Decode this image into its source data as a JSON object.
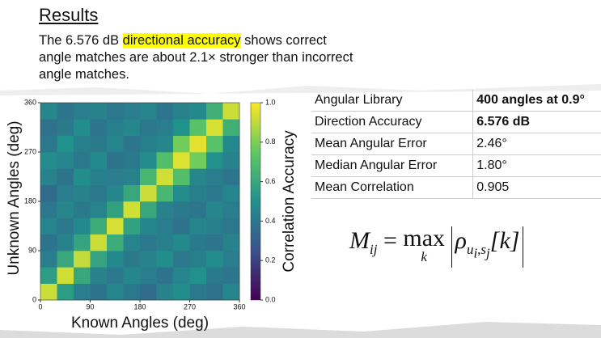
{
  "header": {
    "title": "Results"
  },
  "summary": {
    "before": "The 6.576 dB ",
    "highlight": "directional accuracy",
    "after": " shows correct angle matches are about 2.1× stronger than incorrect angle matches."
  },
  "chart_data": {
    "type": "heatmap",
    "x_label": "Known Angles (deg)",
    "y_label": "Unknown Angles (deg)",
    "colorbar_label": "Correlation Accuracy",
    "xlim": [
      0,
      360
    ],
    "ylim": [
      0,
      360
    ],
    "xticks": [
      0,
      90,
      180,
      270,
      360
    ],
    "yticks": [
      0,
      90,
      180,
      270,
      360
    ],
    "zlim": [
      0,
      1
    ],
    "zticks": [
      {
        "value": 0,
        "label": "0.0"
      },
      0.2,
      0.4,
      0.6,
      0.8,
      {
        "value": 1,
        "label": "1.0"
      }
    ],
    "values": [
      [
        0.92,
        0.55,
        0.42,
        0.38,
        0.45,
        0.4,
        0.35,
        0.44,
        0.48,
        0.4,
        0.37,
        0.46
      ],
      [
        0.55,
        0.93,
        0.6,
        0.44,
        0.4,
        0.46,
        0.42,
        0.38,
        0.45,
        0.5,
        0.41,
        0.39
      ],
      [
        0.42,
        0.6,
        0.91,
        0.58,
        0.47,
        0.41,
        0.44,
        0.49,
        0.4,
        0.43,
        0.48,
        0.42
      ],
      [
        0.38,
        0.44,
        0.58,
        0.92,
        0.62,
        0.45,
        0.4,
        0.43,
        0.47,
        0.41,
        0.39,
        0.44
      ],
      [
        0.45,
        0.4,
        0.47,
        0.62,
        0.94,
        0.57,
        0.46,
        0.42,
        0.38,
        0.45,
        0.43,
        0.4
      ],
      [
        0.4,
        0.46,
        0.41,
        0.45,
        0.57,
        0.93,
        0.6,
        0.44,
        0.41,
        0.39,
        0.46,
        0.42
      ],
      [
        0.35,
        0.42,
        0.44,
        0.4,
        0.46,
        0.6,
        0.92,
        0.66,
        0.48,
        0.43,
        0.4,
        0.45
      ],
      [
        0.44,
        0.38,
        0.49,
        0.43,
        0.42,
        0.44,
        0.66,
        0.93,
        0.7,
        0.46,
        0.42,
        0.39
      ],
      [
        0.48,
        0.45,
        0.4,
        0.47,
        0.38,
        0.41,
        0.48,
        0.7,
        0.95,
        0.78,
        0.5,
        0.44
      ],
      [
        0.4,
        0.5,
        0.43,
        0.41,
        0.45,
        0.39,
        0.43,
        0.46,
        0.78,
        0.96,
        0.72,
        0.47
      ],
      [
        0.37,
        0.41,
        0.48,
        0.39,
        0.43,
        0.46,
        0.4,
        0.42,
        0.5,
        0.72,
        0.94,
        0.63
      ],
      [
        0.46,
        0.39,
        0.42,
        0.44,
        0.4,
        0.42,
        0.45,
        0.39,
        0.44,
        0.47,
        0.63,
        0.92
      ]
    ]
  },
  "table": {
    "rows": [
      [
        "Angular Library",
        "400 angles at 0.9°"
      ],
      [
        "Direction Accuracy",
        "6.576 dB"
      ],
      [
        "Mean Angular Error",
        "2.46°"
      ],
      [
        "Median Angular Error",
        "1.80°"
      ],
      [
        "Mean Correlation",
        "0.905"
      ]
    ]
  },
  "equation": {
    "lhs": "M",
    "lhs_sub": "ij",
    "eq": "=",
    "op": "max",
    "op_sub": "k",
    "body": "ρ",
    "body_sub": "u",
    "body_sub_i": "i",
    "comma": ",",
    "body_sub2": "s",
    "body_sub_j": "j",
    "arg": "[k]"
  }
}
